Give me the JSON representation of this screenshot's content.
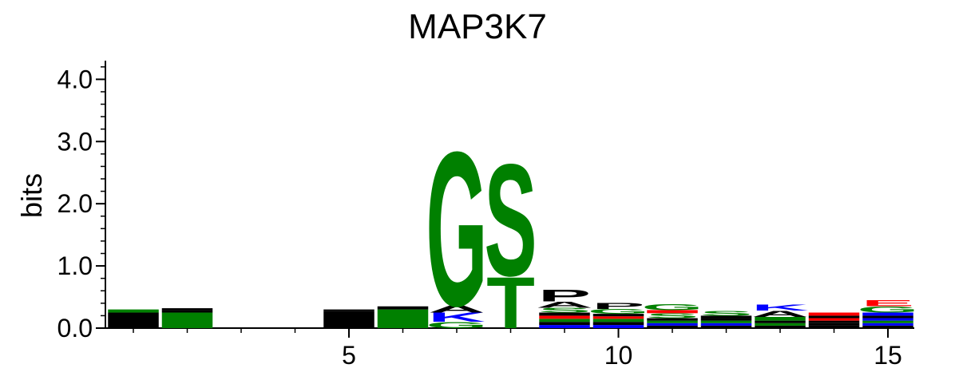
{
  "chart_data": {
    "type": "sequence-logo",
    "title": "MAP3K7",
    "xlabel": "",
    "ylabel": "bits",
    "ylim": [
      0,
      4.3
    ],
    "yticks": [
      "0.0",
      "1.0",
      "2.0",
      "3.0",
      "4.0"
    ],
    "ytick_values": [
      0,
      1,
      2,
      3,
      4
    ],
    "xticks": [
      "5",
      "10",
      "15"
    ],
    "xtick_values": [
      5,
      10,
      15
    ],
    "positions": 15,
    "columns": [
      {
        "pos": 1,
        "stack": [
          {
            "aa": "",
            "h": 0.25,
            "color": "#000000"
          },
          {
            "aa": "",
            "h": 0.05,
            "color": "#008000"
          }
        ]
      },
      {
        "pos": 2,
        "stack": [
          {
            "aa": "",
            "h": 0.25,
            "color": "#008000"
          },
          {
            "aa": "",
            "h": 0.04,
            "color": "#000000"
          },
          {
            "aa": "",
            "h": 0.03,
            "color": "#000000"
          }
        ]
      },
      {
        "pos": 3,
        "stack": []
      },
      {
        "pos": 4,
        "stack": []
      },
      {
        "pos": 5,
        "stack": [
          {
            "aa": "",
            "h": 0.28,
            "color": "#000000"
          },
          {
            "aa": "",
            "h": 0.02,
            "color": "#000000"
          }
        ]
      },
      {
        "pos": 6,
        "stack": [
          {
            "aa": "",
            "h": 0.3,
            "color": "#008000"
          },
          {
            "aa": "",
            "h": 0.05,
            "color": "#000000"
          }
        ]
      },
      {
        "pos": 7,
        "stack": [
          {
            "aa": "G",
            "h": 0.1,
            "color": "#008000"
          },
          {
            "aa": "K",
            "h": 0.15,
            "color": "#0000ff"
          },
          {
            "aa": "A",
            "h": 0.12,
            "color": "#000000"
          },
          {
            "aa": "G",
            "h": 2.55,
            "color": "#008000"
          }
        ]
      },
      {
        "pos": 8,
        "stack": [
          {
            "aa": "T",
            "h": 0.85,
            "color": "#008000"
          },
          {
            "aa": "S",
            "h": 1.85,
            "color": "#008000"
          }
        ]
      },
      {
        "pos": 9,
        "stack": [
          {
            "aa": "",
            "h": 0.05,
            "color": "#0000ff"
          },
          {
            "aa": "",
            "h": 0.05,
            "color": "#000000"
          },
          {
            "aa": "",
            "h": 0.05,
            "color": "#008000"
          },
          {
            "aa": "",
            "h": 0.05,
            "color": "#ff0000"
          },
          {
            "aa": "",
            "h": 0.05,
            "color": "#000000"
          },
          {
            "aa": "S",
            "h": 0.08,
            "color": "#008000"
          },
          {
            "aa": "A",
            "h": 0.1,
            "color": "#000000"
          },
          {
            "aa": "P",
            "h": 0.2,
            "color": "#000000"
          }
        ]
      },
      {
        "pos": 10,
        "stack": [
          {
            "aa": "",
            "h": 0.05,
            "color": "#0000ff"
          },
          {
            "aa": "",
            "h": 0.05,
            "color": "#000000"
          },
          {
            "aa": "",
            "h": 0.05,
            "color": "#008000"
          },
          {
            "aa": "",
            "h": 0.04,
            "color": "#ff0000"
          },
          {
            "aa": "",
            "h": 0.04,
            "color": "#000000"
          },
          {
            "aa": "G",
            "h": 0.08,
            "color": "#008000"
          },
          {
            "aa": "P",
            "h": 0.1,
            "color": "#000000"
          }
        ]
      },
      {
        "pos": 11,
        "stack": [
          {
            "aa": "",
            "h": 0.04,
            "color": "#000000"
          },
          {
            "aa": "",
            "h": 0.04,
            "color": "#0000ff"
          },
          {
            "aa": "",
            "h": 0.04,
            "color": "#008000"
          },
          {
            "aa": "",
            "h": 0.04,
            "color": "#000000"
          },
          {
            "aa": "S",
            "h": 0.08,
            "color": "#008000"
          },
          {
            "aa": "E",
            "h": 0.05,
            "color": "#ff0000"
          },
          {
            "aa": "G",
            "h": 0.1,
            "color": "#008000"
          }
        ]
      },
      {
        "pos": 12,
        "stack": [
          {
            "aa": "",
            "h": 0.04,
            "color": "#000000"
          },
          {
            "aa": "",
            "h": 0.04,
            "color": "#0000ff"
          },
          {
            "aa": "",
            "h": 0.04,
            "color": "#008000"
          },
          {
            "aa": "",
            "h": 0.04,
            "color": "#000000"
          },
          {
            "aa": "",
            "h": 0.04,
            "color": "#000000"
          },
          {
            "aa": "S",
            "h": 0.08,
            "color": "#008000"
          }
        ]
      },
      {
        "pos": 13,
        "stack": [
          {
            "aa": "",
            "h": 0.04,
            "color": "#000000"
          },
          {
            "aa": "",
            "h": 0.04,
            "color": "#008000"
          },
          {
            "aa": "",
            "h": 0.04,
            "color": "#000000"
          },
          {
            "aa": "S",
            "h": 0.06,
            "color": "#008000"
          },
          {
            "aa": "A",
            "h": 0.1,
            "color": "#000000"
          },
          {
            "aa": "K",
            "h": 0.1,
            "color": "#0000ff"
          }
        ]
      },
      {
        "pos": 14,
        "stack": [
          {
            "aa": "",
            "h": 0.04,
            "color": "#000000"
          },
          {
            "aa": "",
            "h": 0.04,
            "color": "#000000"
          },
          {
            "aa": "",
            "h": 0.04,
            "color": "#000000"
          },
          {
            "aa": "",
            "h": 0.04,
            "color": "#ff0000"
          },
          {
            "aa": "",
            "h": 0.04,
            "color": "#000000"
          },
          {
            "aa": "",
            "h": 0.05,
            "color": "#ff0000"
          }
        ]
      },
      {
        "pos": 15,
        "stack": [
          {
            "aa": "",
            "h": 0.04,
            "color": "#000000"
          },
          {
            "aa": "",
            "h": 0.04,
            "color": "#0000ff"
          },
          {
            "aa": "",
            "h": 0.04,
            "color": "#008000"
          },
          {
            "aa": "",
            "h": 0.04,
            "color": "#0000ff"
          },
          {
            "aa": "",
            "h": 0.04,
            "color": "#000000"
          },
          {
            "aa": "",
            "h": 0.05,
            "color": "#0000ff"
          },
          {
            "aa": "G",
            "h": 0.1,
            "color": "#008000"
          },
          {
            "aa": "E",
            "h": 0.1,
            "color": "#ff0000"
          }
        ]
      }
    ]
  }
}
